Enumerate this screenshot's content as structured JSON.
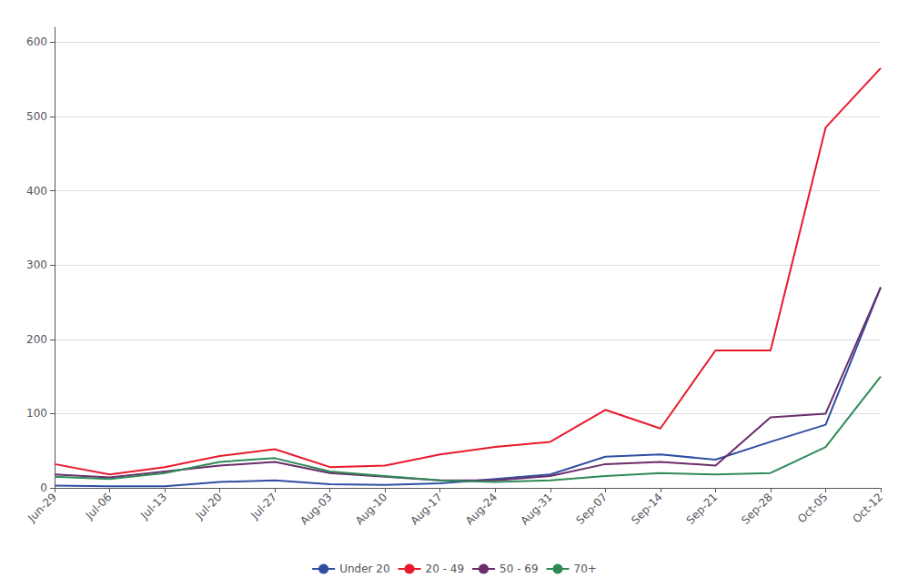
{
  "chart_data": {
    "type": "line",
    "categories": [
      "Jun-29",
      "Jul-06",
      "Jul-13",
      "Jul-20",
      "Jul-27",
      "Aug-03",
      "Aug-10",
      "Aug-17",
      "Aug-24",
      "Aug-31",
      "Sep-07",
      "Sep-14",
      "Sep-21",
      "Sep-28",
      "Oct-05",
      "Oct-12"
    ],
    "series": [
      {
        "name": "Under 20",
        "color": "#2e4fa1",
        "values": [
          3,
          2,
          2,
          8,
          10,
          5,
          4,
          6,
          12,
          18,
          42,
          45,
          38,
          62,
          85,
          270
        ]
      },
      {
        "name": "20 - 49",
        "color": "#e8192c",
        "values": [
          32,
          18,
          28,
          43,
          52,
          28,
          30,
          45,
          55,
          62,
          105,
          80,
          185,
          185,
          485,
          565
        ]
      },
      {
        "name": "50 - 69",
        "color": "#6b2d6b",
        "values": [
          18,
          14,
          22,
          30,
          35,
          20,
          15,
          10,
          10,
          16,
          32,
          35,
          30,
          95,
          100,
          270
        ]
      },
      {
        "name": "70+",
        "color": "#2e8b57",
        "values": [
          15,
          12,
          20,
          35,
          40,
          22,
          16,
          10,
          8,
          10,
          16,
          20,
          18,
          20,
          55,
          150
        ]
      }
    ],
    "ylim": [
      0,
      620
    ],
    "yticks": [
      0,
      100,
      200,
      300,
      400,
      500,
      600
    ],
    "grid": true,
    "legend": "bottom"
  }
}
